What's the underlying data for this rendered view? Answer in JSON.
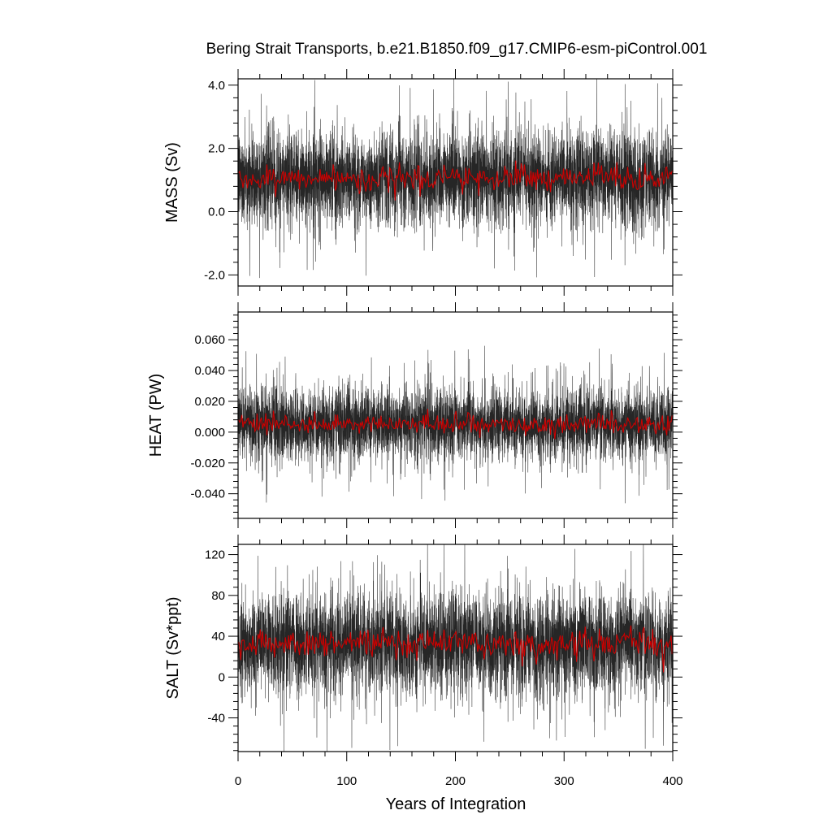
{
  "chart_data": {
    "title": "Bering Strait Transports, b.e21.B1850.f09_g17.CMIP6-esm-piControl.001",
    "xlabel": "Years of Integration",
    "xlim": [
      0,
      400
    ],
    "xticks": [
      0,
      100,
      200,
      300,
      400
    ],
    "xtick_labels": [
      "0",
      "100",
      "200",
      "300",
      "400"
    ],
    "line_colors": {
      "monthly": "#000000",
      "annual": "#cc0000"
    },
    "panels": [
      {
        "type": "line",
        "ylabel": "MASS (Sv)",
        "ylim": [
          -2.35,
          4.2
        ],
        "yticks": [
          -2.0,
          0.0,
          2.0,
          4.0
        ],
        "ytick_labels": [
          "-2.0",
          "0.0",
          "2.0",
          "4.0"
        ],
        "monthly_mean": 1.05,
        "monthly_spread": 0.75,
        "monthly_min": -2.35,
        "monthly_max": 4.2,
        "annual_mean_approx": 1.05
      },
      {
        "type": "line",
        "ylabel": "HEAT (PW)",
        "ylim": [
          -0.056,
          0.078
        ],
        "yticks": [
          -0.04,
          -0.02,
          0.0,
          0.02,
          0.04,
          0.06
        ],
        "ytick_labels": [
          "-0.040",
          "-0.020",
          "0.000",
          "0.020",
          "0.040",
          "0.060"
        ],
        "monthly_mean": 0.005,
        "monthly_spread": 0.012,
        "monthly_min": -0.056,
        "monthly_max": 0.078,
        "annual_mean_approx": 0.005
      },
      {
        "type": "line",
        "ylabel": "SALT (Sv*ppt)",
        "ylim": [
          -73,
          130
        ],
        "yticks": [
          -40,
          0,
          40,
          80,
          120
        ],
        "ytick_labels": [
          "-40",
          "0",
          "40",
          "80",
          "120"
        ],
        "monthly_mean": 33,
        "monthly_spread": 25,
        "monthly_min": -73,
        "monthly_max": 130,
        "annual_mean_approx": 33
      }
    ]
  }
}
